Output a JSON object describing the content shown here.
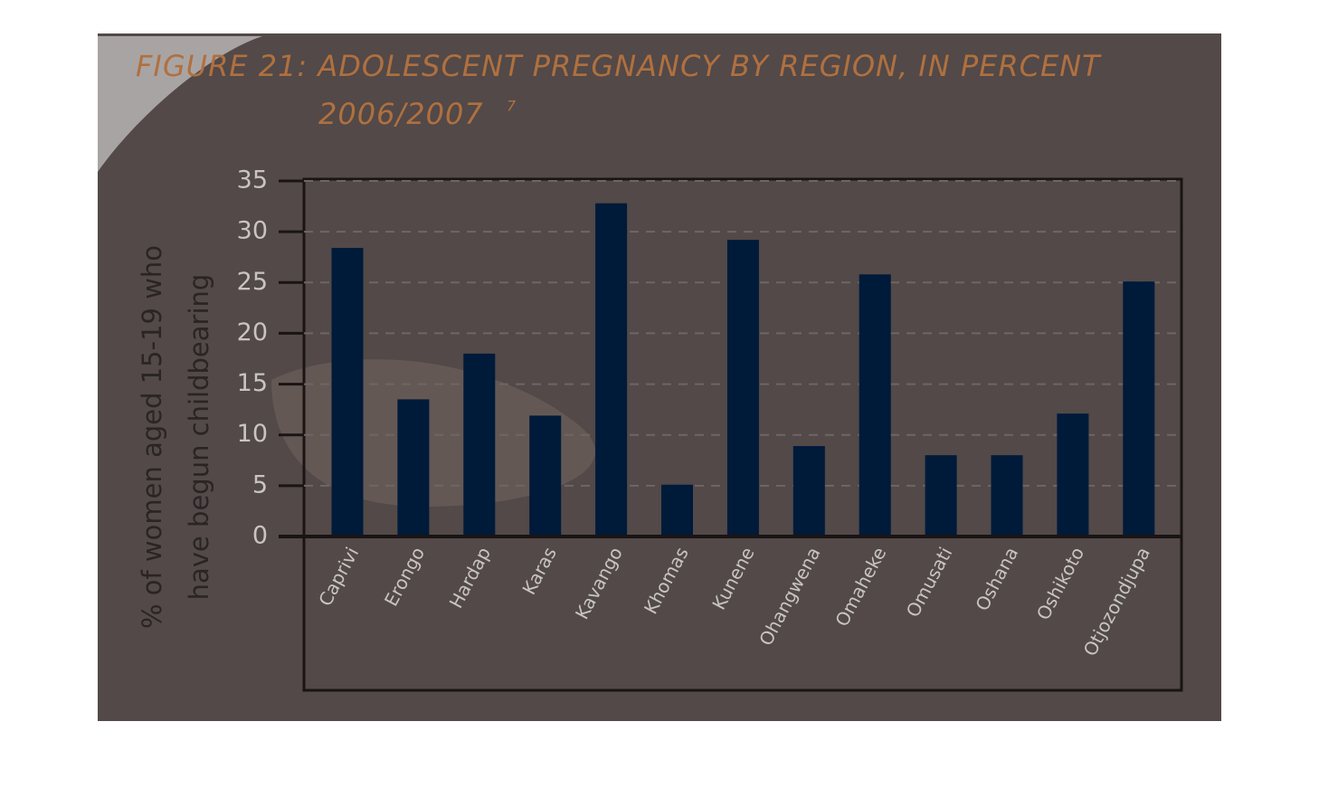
{
  "chart_data": {
    "type": "bar",
    "title": "FIGURE 21: ADOLESCENT PREGNANCY BY REGION, IN PERCENT",
    "subtitle": "2006/2007",
    "footnote": "7",
    "y_label": [
      "% of women aged 15-19 who",
      "have begun childbearing"
    ],
    "categories": [
      "Caprivi",
      "Erongo",
      "Hardap",
      "Karas",
      "Kavango",
      "Khomas",
      "Kunene",
      "Ohangwena",
      "Omaheke",
      "Omusati",
      "Oshana",
      "Oshikoto",
      "Otjozondjupa"
    ],
    "values": [
      28.4,
      13.5,
      18,
      11.9,
      32.8,
      5.1,
      29.2,
      8.9,
      25.8,
      8,
      8,
      12.1,
      25.1
    ],
    "color": "#001a3a",
    "ylim": [
      0,
      35
    ],
    "yticks": [
      0,
      5,
      10,
      15,
      20,
      25,
      30,
      35
    ],
    "grid": true
  }
}
